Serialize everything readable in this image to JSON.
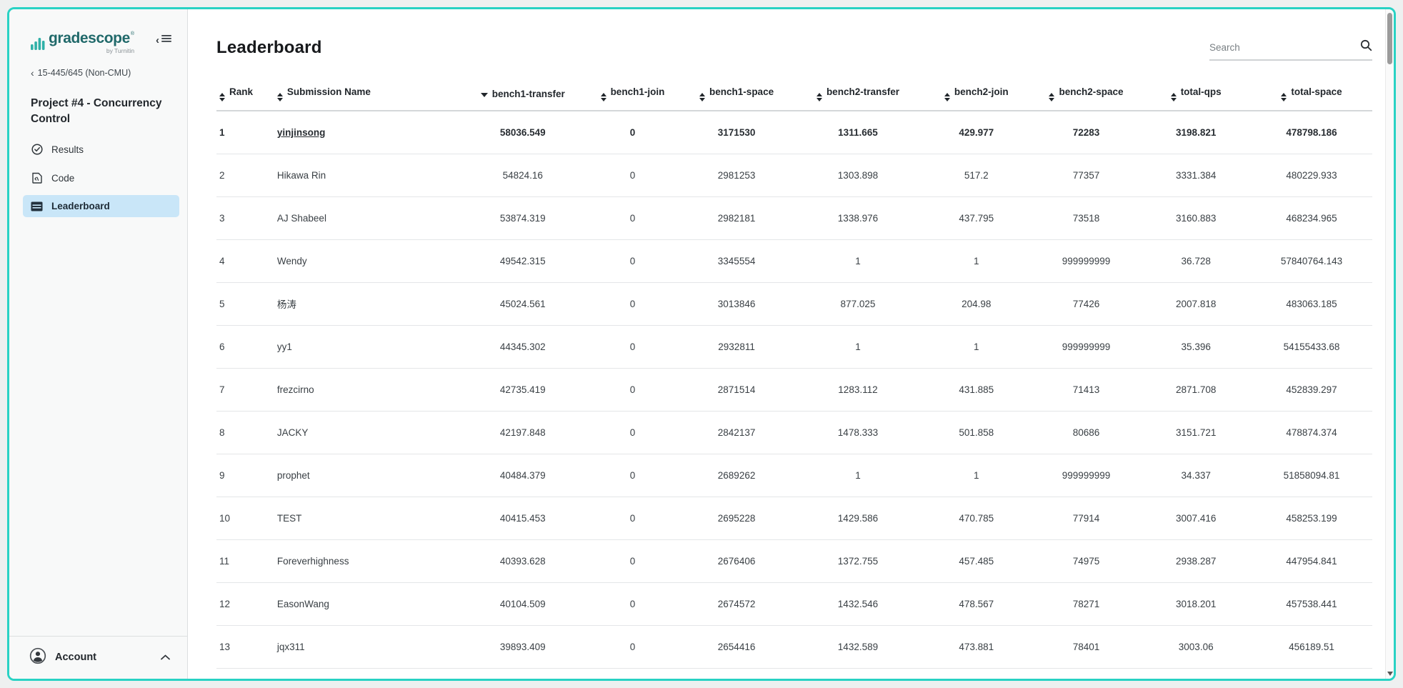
{
  "colors": {
    "accent_teal": "#29d2c4",
    "active_item_bg": "#c9e6f8",
    "brand_teal": "#20696a",
    "logo_bar_teal": "#2fb0a8"
  },
  "sidebar": {
    "logo": {
      "brand": "gradescope",
      "registered_mark": "®",
      "byline": "by Turnitin"
    },
    "icons": {
      "back_chevron": "‹",
      "collapse_chevron": "‹"
    },
    "breadcrumb": "15-445/645 (Non-CMU)",
    "project_title": "Project #4 - Concurrency Control",
    "items": [
      {
        "label": "Results",
        "icon": "check-circle-icon",
        "active": false
      },
      {
        "label": "Code",
        "icon": "code-file-icon",
        "active": false
      },
      {
        "label": "Leaderboard",
        "icon": "table-icon",
        "active": true
      }
    ],
    "account_label": "Account"
  },
  "main": {
    "title": "Leaderboard",
    "search_placeholder": "Search"
  },
  "table": {
    "columns": [
      {
        "label": "Rank",
        "sort": "both",
        "align": "left",
        "width": "5%"
      },
      {
        "label": "Submission Name",
        "sort": "both",
        "align": "left",
        "width": "16%"
      },
      {
        "label": "bench1-transfer",
        "sort": "desc",
        "align": "num",
        "width": "11%"
      },
      {
        "label": "bench1-join",
        "sort": "both",
        "align": "num",
        "width": "8%"
      },
      {
        "label": "bench1-space",
        "sort": "both",
        "align": "num",
        "width": "10%"
      },
      {
        "label": "bench2-transfer",
        "sort": "both",
        "align": "num",
        "width": "11%"
      },
      {
        "label": "bench2-join",
        "sort": "both",
        "align": "num",
        "width": "9.5%"
      },
      {
        "label": "bench2-space",
        "sort": "both",
        "align": "num",
        "width": "9.5%"
      },
      {
        "label": "total-qps",
        "sort": "both",
        "align": "num",
        "width": "9.5%"
      },
      {
        "label": "total-space",
        "sort": "both",
        "align": "num",
        "width": "10.5%"
      }
    ],
    "rows": [
      {
        "rank": "1",
        "name": "yinjinsong",
        "link": true,
        "bold": true,
        "values": [
          "58036.549",
          "0",
          "3171530",
          "1311.665",
          "429.977",
          "72283",
          "3198.821",
          "478798.186"
        ]
      },
      {
        "rank": "2",
        "name": "Hikawa Rin",
        "link": false,
        "bold": false,
        "values": [
          "54824.16",
          "0",
          "2981253",
          "1303.898",
          "517.2",
          "77357",
          "3331.384",
          "480229.933"
        ]
      },
      {
        "rank": "3",
        "name": "AJ Shabeel",
        "link": false,
        "bold": false,
        "values": [
          "53874.319",
          "0",
          "2982181",
          "1338.976",
          "437.795",
          "73518",
          "3160.883",
          "468234.965"
        ]
      },
      {
        "rank": "4",
        "name": "Wendy",
        "link": false,
        "bold": false,
        "values": [
          "49542.315",
          "0",
          "3345554",
          "1",
          "1",
          "999999999",
          "36.728",
          "57840764.143"
        ]
      },
      {
        "rank": "5",
        "name": "杨涛",
        "link": false,
        "bold": false,
        "values": [
          "45024.561",
          "0",
          "3013846",
          "877.025",
          "204.98",
          "77426",
          "2007.818",
          "483063.185"
        ]
      },
      {
        "rank": "6",
        "name": "yy1",
        "link": false,
        "bold": false,
        "values": [
          "44345.302",
          "0",
          "2932811",
          "1",
          "1",
          "999999999",
          "35.396",
          "54155433.68"
        ]
      },
      {
        "rank": "7",
        "name": "frezcirno",
        "link": false,
        "bold": false,
        "values": [
          "42735.419",
          "0",
          "2871514",
          "1283.112",
          "431.885",
          "71413",
          "2871.708",
          "452839.297"
        ]
      },
      {
        "rank": "8",
        "name": "JACKY",
        "link": false,
        "bold": false,
        "values": [
          "42197.848",
          "0",
          "2842137",
          "1478.333",
          "501.858",
          "80686",
          "3151.721",
          "478874.374"
        ]
      },
      {
        "rank": "9",
        "name": "prophet",
        "link": false,
        "bold": false,
        "values": [
          "40484.379",
          "0",
          "2689262",
          "1",
          "1",
          "999999999",
          "34.337",
          "51858094.81"
        ]
      },
      {
        "rank": "10",
        "name": "TEST",
        "link": false,
        "bold": false,
        "values": [
          "40415.453",
          "0",
          "2695228",
          "1429.586",
          "470.785",
          "77914",
          "3007.416",
          "458253.199"
        ]
      },
      {
        "rank": "11",
        "name": "Foreverhighness",
        "link": false,
        "bold": false,
        "values": [
          "40393.628",
          "0",
          "2676406",
          "1372.755",
          "457.485",
          "74975",
          "2938.287",
          "447954.841"
        ]
      },
      {
        "rank": "12",
        "name": "EasonWang",
        "link": false,
        "bold": false,
        "values": [
          "40104.509",
          "0",
          "2674572",
          "1432.546",
          "478.567",
          "78271",
          "3018.201",
          "457538.441"
        ]
      },
      {
        "rank": "13",
        "name": "jqx311",
        "link": false,
        "bold": false,
        "values": [
          "39893.409",
          "0",
          "2654416",
          "1432.589",
          "473.881",
          "78401",
          "3003.06",
          "456189.51"
        ]
      }
    ]
  }
}
